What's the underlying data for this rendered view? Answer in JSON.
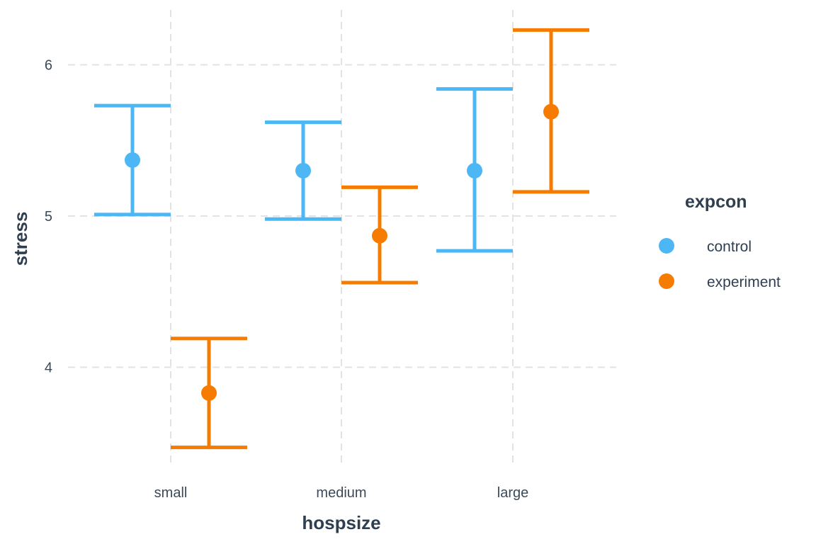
{
  "chart_data": {
    "type": "errorbar",
    "title": "",
    "xlabel": "hospsize",
    "ylabel": "stress",
    "categories": [
      "small",
      "medium",
      "large"
    ],
    "ylim": [
      3.35,
      6.35
    ],
    "yticks": [
      4,
      5,
      6
    ],
    "grid": true,
    "legend": {
      "title": "expcon",
      "placement": "right"
    },
    "series": [
      {
        "name": "control",
        "color": "#4db6f4",
        "means": [
          5.37,
          5.3,
          5.3
        ],
        "lower": [
          5.01,
          4.98,
          4.77
        ],
        "upper": [
          5.73,
          5.62,
          5.84
        ]
      },
      {
        "name": "experiment",
        "color": "#f57c00",
        "means": [
          3.83,
          4.87,
          5.69
        ],
        "lower": [
          3.47,
          4.56,
          5.16
        ],
        "upper": [
          4.19,
          5.19,
          6.23
        ]
      }
    ]
  }
}
